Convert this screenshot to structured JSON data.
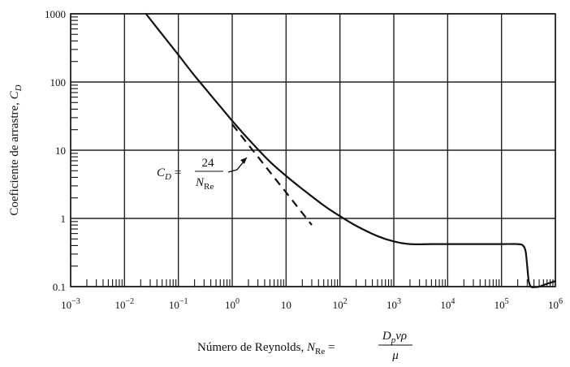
{
  "chart_data": {
    "type": "line",
    "xscale": "log",
    "yscale": "log",
    "xlim": [
      0.001,
      1000000
    ],
    "ylim": [
      0.1,
      1000
    ],
    "grid": true,
    "xticks": [
      {
        "value": 0.001,
        "base": "10",
        "exp": "−3"
      },
      {
        "value": 0.01,
        "base": "10",
        "exp": "−2"
      },
      {
        "value": 0.1,
        "base": "10",
        "exp": "−1"
      },
      {
        "value": 1,
        "base": "10",
        "exp": "0"
      },
      {
        "value": 10,
        "base": "10",
        "exp": ""
      },
      {
        "value": 100,
        "base": "10",
        "exp": "2"
      },
      {
        "value": 1000,
        "base": "10",
        "exp": "3"
      },
      {
        "value": 10000,
        "base": "10",
        "exp": "4"
      },
      {
        "value": 100000,
        "base": "10",
        "exp": "5"
      },
      {
        "value": 1000000,
        "base": "10",
        "exp": "6"
      }
    ],
    "yticks": [
      {
        "value": 0.1,
        "label": "0.1"
      },
      {
        "value": 1,
        "label": "1"
      },
      {
        "value": 10,
        "label": "10"
      },
      {
        "value": 100,
        "label": "100"
      },
      {
        "value": 1000,
        "label": "1000"
      }
    ],
    "ylabel": {
      "main": "Coeficiente de arrastre, ",
      "sym": "C",
      "sub": "D"
    },
    "xlabel": {
      "main": "Número de Reynolds, ",
      "sym": "N",
      "sub": "Re",
      "eq": " = ",
      "numerator": "D",
      "numerator_sub": "p",
      "numerator_rest": "vρ",
      "denominator": "μ"
    },
    "annotation": {
      "lhs_sym": "C",
      "lhs_sub": "D",
      "eq": " = ",
      "numerator": "24",
      "denominator_sym": "N",
      "denominator_sub": "Re"
    },
    "series": [
      {
        "style": "solid",
        "x": [
          0.025,
          0.05,
          0.1,
          0.2,
          0.5,
          1,
          2,
          5,
          10,
          20,
          50,
          100,
          200,
          500,
          1000,
          2000,
          5000,
          10000,
          50000,
          100000,
          200000,
          250000,
          280000,
          300000,
          320000,
          350000,
          400000,
          500000,
          700000,
          1000000
        ],
        "y": [
          1000,
          500,
          250,
          124,
          52,
          27,
          14.5,
          6.8,
          4.2,
          2.7,
          1.55,
          1.08,
          0.78,
          0.55,
          0.46,
          0.42,
          0.42,
          0.42,
          0.42,
          0.42,
          0.42,
          0.4,
          0.33,
          0.2,
          0.12,
          0.1,
          0.098,
          0.1,
          0.11,
          0.12
        ]
      },
      {
        "style": "dashed",
        "x": [
          1,
          30
        ],
        "y": [
          24,
          0.8
        ]
      }
    ]
  }
}
